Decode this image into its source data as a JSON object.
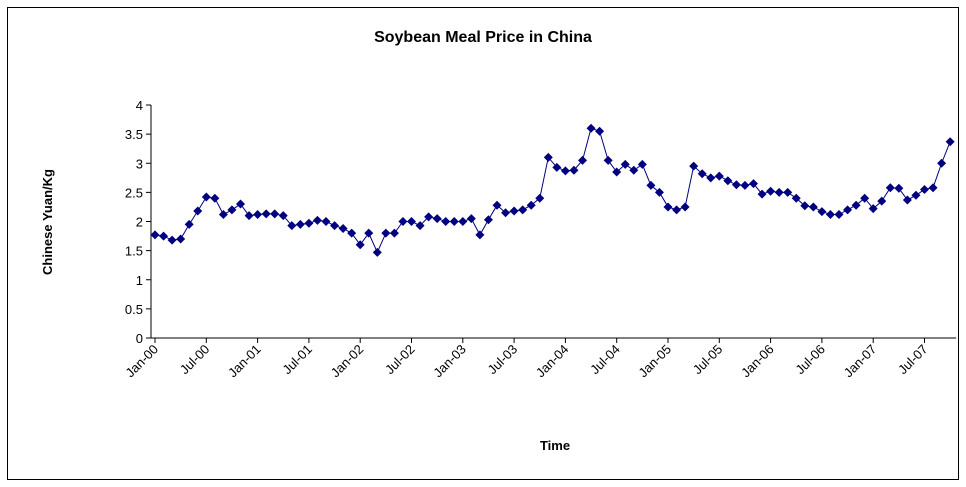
{
  "chart_data": {
    "type": "line",
    "title": "Soybean Meal Price in China",
    "x_label": "Time",
    "y_label": "Chinese Yuan/Kg",
    "categories": [
      "Jan-00",
      null,
      null,
      null,
      null,
      null,
      "Jul-00",
      null,
      null,
      null,
      null,
      null,
      "Jan-01",
      null,
      null,
      null,
      null,
      null,
      "Jul-01",
      null,
      null,
      null,
      null,
      null,
      "Jan-02",
      null,
      null,
      null,
      null,
      null,
      "Jul-02",
      null,
      null,
      null,
      null,
      null,
      "Jan-03",
      null,
      null,
      null,
      null,
      null,
      "Jul-03",
      null,
      null,
      null,
      null,
      null,
      "Jan-04",
      null,
      null,
      null,
      null,
      null,
      "Jul-04",
      null,
      null,
      null,
      null,
      null,
      "Jan-05",
      null,
      null,
      null,
      null,
      null,
      "Jul-05",
      null,
      null,
      null,
      null,
      null,
      "Jan-06",
      null,
      null,
      null,
      null,
      null,
      "Jul-06",
      null,
      null,
      null,
      null,
      null,
      "Jan-07",
      null,
      null,
      null,
      null,
      null,
      "Jul-07",
      null,
      null,
      null
    ],
    "values": [
      1.77,
      1.75,
      1.68,
      1.7,
      1.95,
      2.18,
      2.42,
      2.4,
      2.12,
      2.2,
      2.3,
      2.1,
      2.12,
      2.13,
      2.13,
      2.1,
      1.93,
      1.95,
      1.97,
      2.02,
      2.0,
      1.93,
      1.88,
      1.8,
      1.6,
      1.8,
      1.47,
      1.8,
      1.8,
      2.0,
      2.0,
      1.93,
      2.08,
      2.05,
      2.0,
      2.0,
      2.0,
      2.05,
      1.77,
      2.03,
      2.28,
      2.15,
      2.18,
      2.2,
      2.28,
      2.4,
      3.1,
      2.93,
      2.87,
      2.88,
      3.05,
      3.6,
      3.55,
      3.05,
      2.85,
      2.98,
      2.88,
      2.98,
      2.62,
      2.5,
      2.25,
      2.2,
      2.25,
      2.95,
      2.82,
      2.75,
      2.78,
      2.7,
      2.63,
      2.62,
      2.65,
      2.47,
      2.52,
      2.5,
      2.5,
      2.4,
      2.27,
      2.25,
      2.17,
      2.12,
      2.12,
      2.2,
      2.28,
      2.4,
      2.22,
      2.35,
      2.58,
      2.57,
      2.37,
      2.45,
      2.55,
      2.58,
      3.0,
      3.37
    ],
    "color": "#000080",
    "ylim": [
      0,
      4
    ],
    "yticks": [
      0,
      0.5,
      1,
      1.5,
      2,
      2.5,
      3,
      3.5,
      4
    ],
    "grid": false
  }
}
